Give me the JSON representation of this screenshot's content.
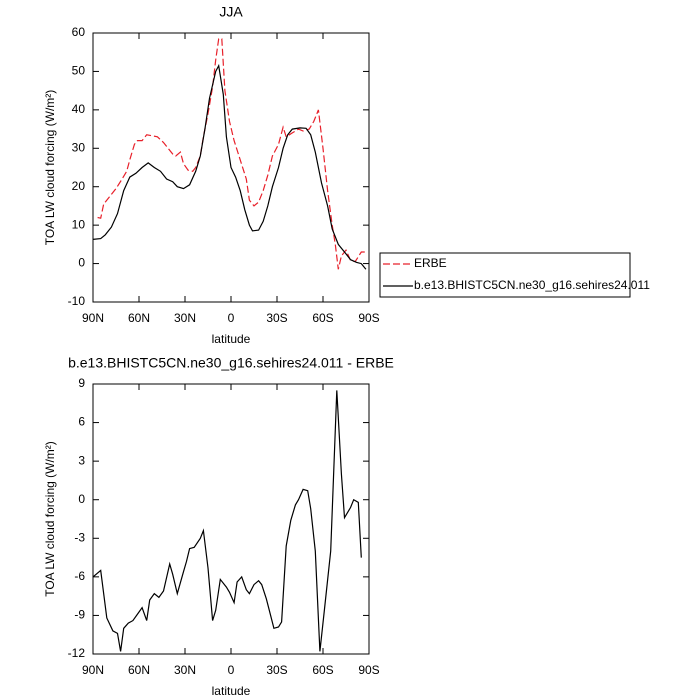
{
  "chart_data": [
    {
      "type": "line",
      "title": "JJA",
      "xlabel": "latitude",
      "ylabel": "TOA LW cloud forcing (W/m²)",
      "xlim": [
        90,
        -90
      ],
      "xticks": [
        {
          "value": 90,
          "label": "90N"
        },
        {
          "value": 60,
          "label": "60N"
        },
        {
          "value": 30,
          "label": "30N"
        },
        0,
        {
          "value": -30,
          "label": "30S"
        },
        {
          "value": -60,
          "label": "60S"
        },
        {
          "value": -90,
          "label": "90S"
        }
      ],
      "ylim": [
        -10,
        60
      ],
      "yticks": [
        -10,
        0,
        10,
        20,
        30,
        40,
        50,
        60
      ],
      "legend": "right",
      "series": [
        {
          "name": "ERBE",
          "color": "#e8202a",
          "dash": true,
          "x": [
            87,
            85,
            83,
            79,
            75,
            71,
            68,
            66,
            63,
            61,
            58,
            55,
            52,
            48,
            44,
            41,
            38,
            36,
            33,
            31,
            28,
            25,
            23,
            20,
            18,
            15,
            12,
            10,
            8,
            6,
            4,
            1,
            -2,
            -6,
            -10,
            -12,
            -15,
            -18,
            -21,
            -24,
            -27,
            -31,
            -34,
            -36,
            -40,
            -44,
            -47,
            -51,
            -54,
            -57,
            -60,
            -63,
            -66,
            -68,
            -70,
            -72,
            -75,
            -78,
            -81,
            -85,
            -88
          ],
          "values": [
            12,
            11.8,
            15.5,
            17.5,
            19.5,
            22,
            24,
            27,
            31,
            32,
            32,
            33.5,
            33.3,
            33,
            31.5,
            30,
            28.5,
            28,
            29,
            26,
            24.3,
            24,
            25,
            28,
            33,
            39,
            46,
            53,
            58.5,
            58.5,
            45,
            37,
            32,
            27,
            22,
            16.5,
            15,
            16,
            19,
            23,
            28,
            31,
            35.5,
            33,
            34,
            35,
            34.5,
            35,
            37,
            40,
            30,
            19,
            10,
            5,
            -1.5,
            2,
            3.5,
            0.8,
            0.5,
            3,
            3
          ]
        },
        {
          "name": "b.e13.BHISTC5CN.ne30_g16.sehires24.011",
          "color": "#000000",
          "dash": false,
          "x": [
            90,
            85,
            82,
            78,
            74,
            70,
            66,
            62,
            58,
            54,
            50,
            46,
            42,
            38,
            35,
            31,
            27,
            23,
            20,
            17,
            14,
            10,
            8,
            5,
            3,
            0,
            -3,
            -6,
            -9,
            -12,
            -14,
            -18,
            -21,
            -24,
            -27,
            -31,
            -34,
            -37,
            -40,
            -45,
            -49,
            -52,
            -55,
            -59,
            -63,
            -66,
            -70,
            -74,
            -78,
            -82,
            -85,
            -88
          ],
          "values": [
            6.3,
            6.5,
            7.5,
            9.5,
            13,
            19,
            22.5,
            23.5,
            25,
            26.2,
            25,
            24,
            22,
            21.3,
            20,
            19.5,
            20.5,
            24,
            28,
            35,
            43,
            50,
            51.5,
            44,
            33,
            25,
            22.5,
            19,
            14,
            10,
            8.5,
            8.7,
            11,
            15,
            20,
            25,
            30,
            33.5,
            35,
            35.3,
            35.2,
            33.5,
            29,
            21,
            15,
            9,
            5,
            3,
            1,
            0.3,
            0,
            -1.5
          ]
        }
      ]
    },
    {
      "type": "line",
      "title": "b.e13.BHISTC5CN.ne30_g16.sehires24.011 - ERBE",
      "xlabel": "latitude",
      "ylabel": "TOA LW cloud forcing (W/m²)",
      "xlim": [
        90,
        -90
      ],
      "xticks": [
        {
          "value": 90,
          "label": "90N"
        },
        {
          "value": 60,
          "label": "60N"
        },
        {
          "value": 30,
          "label": "30N"
        },
        0,
        {
          "value": -30,
          "label": "30S"
        },
        {
          "value": -60,
          "label": "60S"
        },
        {
          "value": -90,
          "label": "90S"
        }
      ],
      "ylim": [
        -12,
        9
      ],
      "yticks": [
        -12,
        -9,
        -6,
        -3,
        0,
        3,
        6,
        9
      ],
      "series": [
        {
          "color": "#000000",
          "dash": false,
          "x": [
            90,
            85,
            81,
            77,
            74,
            72,
            70,
            67,
            64,
            61,
            58,
            55,
            53,
            50,
            47,
            44,
            40,
            38,
            35,
            31,
            29,
            27,
            24,
            20,
            18,
            15,
            12,
            10,
            7,
            3,
            1,
            -2,
            -4,
            -7,
            -10,
            -12,
            -15,
            -18,
            -20,
            -23,
            -25,
            -28,
            -31,
            -33,
            -36,
            -39,
            -42,
            -44,
            -47,
            -50,
            -52,
            -55,
            -58,
            -61,
            -65,
            -69,
            -72,
            -74,
            -78,
            -80,
            -83,
            -85
          ],
          "values": [
            -6,
            -5.5,
            -9.2,
            -10.2,
            -10.4,
            -11.8,
            -10,
            -9.6,
            -9.4,
            -8.9,
            -8.4,
            -9.4,
            -7.8,
            -7.3,
            -7.6,
            -7.1,
            -5,
            -5.8,
            -7.3,
            -5.6,
            -4.8,
            -3.8,
            -3.7,
            -3,
            -2.4,
            -5.3,
            -9.4,
            -8.6,
            -6.2,
            -6.8,
            -7.2,
            -8,
            -6.4,
            -6,
            -7,
            -7.3,
            -6.6,
            -6.3,
            -6.6,
            -7.7,
            -8.6,
            -10,
            -9.9,
            -9.5,
            -3.6,
            -1.6,
            -0.4,
            0,
            0.8,
            0.7,
            -0.7,
            -4,
            -11.8,
            -8.5,
            -4,
            8.5,
            2,
            -1.4,
            -0.6,
            0,
            -0.2,
            -4.5
          ]
        }
      ]
    }
  ]
}
